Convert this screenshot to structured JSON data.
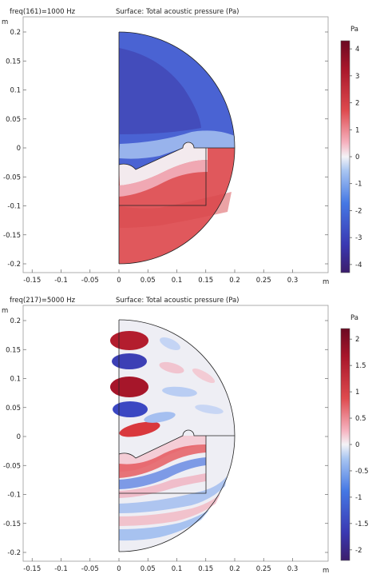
{
  "chart_data": [
    {
      "type": "heatmap",
      "freq_label": "freq(161)=1000 Hz",
      "title": "Surface: Total acoustic pressure (Pa)",
      "x_unit": "m",
      "y_unit": "m",
      "xlim": [
        -0.16,
        0.36
      ],
      "ylim": [
        -0.22,
        0.22
      ],
      "x_ticks": [
        -0.15,
        -0.1,
        -0.05,
        0,
        0.05,
        0.1,
        0.15,
        0.2,
        0.25,
        0.3
      ],
      "x_tick_labels": [
        "-0.15",
        "-0.1",
        "-0.05",
        "0",
        "0.05",
        "0.1",
        "0.15",
        "0.2",
        "0.25",
        "0.3"
      ],
      "y_ticks": [
        0.2,
        0.15,
        0.1,
        0.05,
        0,
        -0.05,
        -0.1,
        -0.15,
        -0.2
      ],
      "y_tick_labels": [
        "0.2",
        "0.15",
        "0.1",
        "0.05",
        "0",
        "-0.05",
        "-0.1",
        "-0.15",
        "-0.2"
      ],
      "colorbar": {
        "unit": "Pa",
        "min": -4.3,
        "max": 4.3,
        "ticks": [
          4,
          3,
          2,
          1,
          0,
          -1,
          -2,
          -3,
          -4
        ],
        "tick_labels": [
          "4",
          "3",
          "2",
          "1",
          "0",
          "-1",
          "-2",
          "-3",
          "-4"
        ]
      },
      "frequency_hz": 1000
    },
    {
      "type": "heatmap",
      "freq_label": "freq(217)=5000 Hz",
      "title": "Surface: Total acoustic pressure (Pa)",
      "x_unit": "m",
      "y_unit": "m",
      "xlim": [
        -0.16,
        0.36
      ],
      "ylim": [
        -0.22,
        0.22
      ],
      "x_ticks": [
        -0.15,
        -0.1,
        -0.05,
        0,
        0.05,
        0.1,
        0.15,
        0.2,
        0.25,
        0.3
      ],
      "x_tick_labels": [
        "-0.15",
        "-0.1",
        "-0.05",
        "0",
        "0.05",
        "0.1",
        "0.15",
        "0.2",
        "0.25",
        "0.3"
      ],
      "y_ticks": [
        0.2,
        0.15,
        0.1,
        0.05,
        0,
        -0.05,
        -0.1,
        -0.15,
        -0.2
      ],
      "y_tick_labels": [
        "0.2",
        "0.15",
        "0.1",
        "0.05",
        "0",
        "-0.05",
        "-0.1",
        "-0.15",
        "-0.2"
      ],
      "colorbar": {
        "unit": "Pa",
        "min": -2.2,
        "max": 2.2,
        "ticks": [
          2,
          1.5,
          1,
          0.5,
          0,
          -0.5,
          -1,
          -1.5,
          -2
        ],
        "tick_labels": [
          "2",
          "1.5",
          "1",
          "0.5",
          "0",
          "-0.5",
          "-1",
          "-1.5",
          "-2"
        ]
      },
      "frequency_hz": 5000
    }
  ]
}
